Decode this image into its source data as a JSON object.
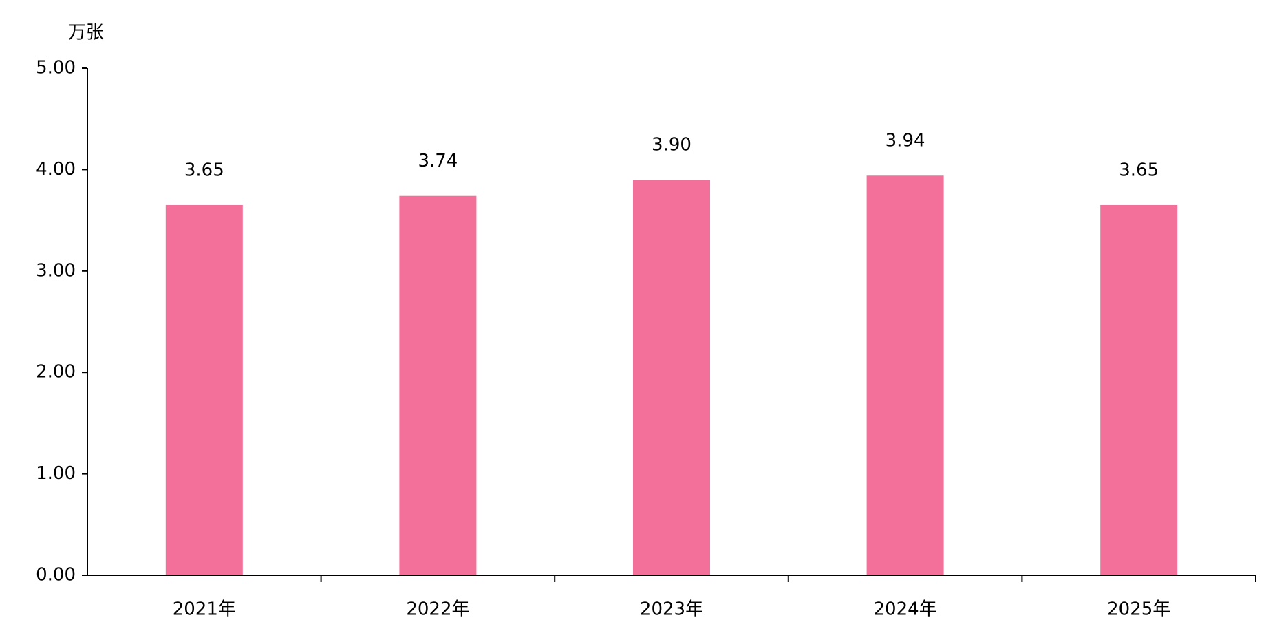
{
  "chart_data": {
    "type": "bar",
    "y_label": "万张",
    "categories": [
      "2021年",
      "2022年",
      "2023年",
      "2024年",
      "2025年"
    ],
    "values": [
      3.65,
      3.74,
      3.9,
      3.94,
      3.65
    ],
    "value_labels": [
      "3.65",
      "3.74",
      "3.90",
      "3.94",
      "3.65"
    ],
    "color": "#f27099",
    "ylim": [
      0,
      5
    ],
    "yticks": [
      {
        "value": 0,
        "label": "0.00"
      },
      {
        "value": 1,
        "label": "1.00"
      },
      {
        "value": 2,
        "label": "2.00"
      },
      {
        "value": 3,
        "label": "3.00"
      },
      {
        "value": 4,
        "label": "4.00"
      },
      {
        "value": 5,
        "label": "5.00"
      }
    ],
    "grid": false
  }
}
